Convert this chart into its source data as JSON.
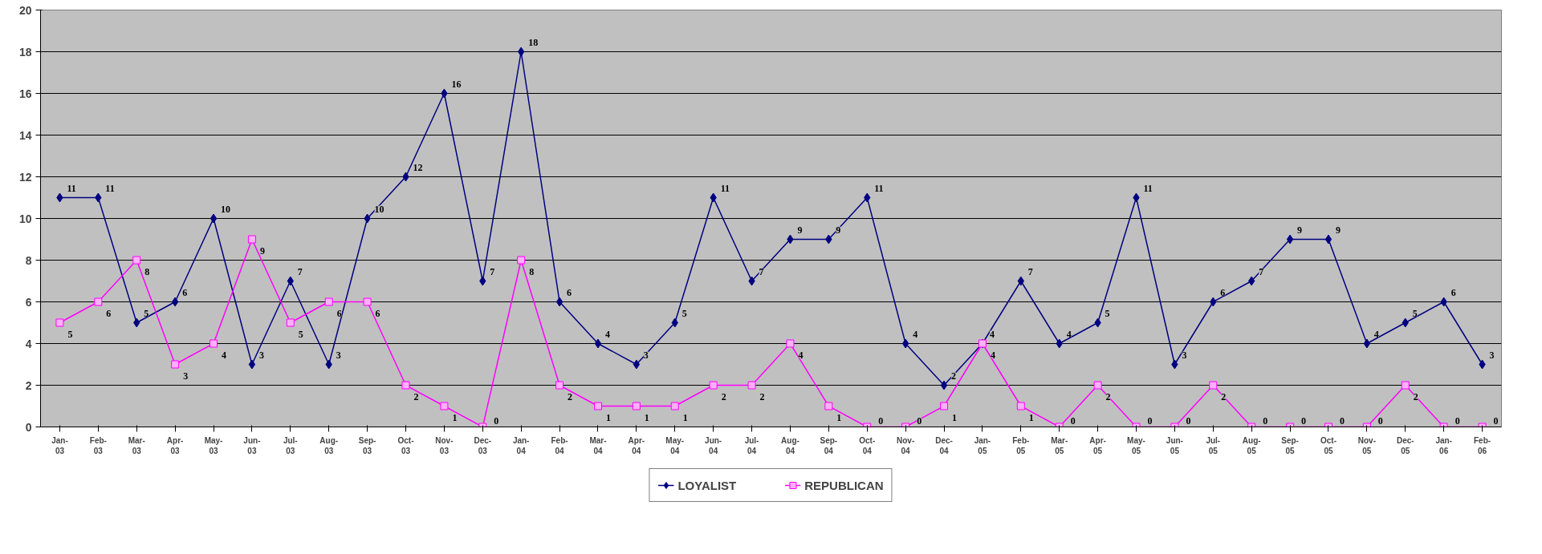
{
  "chart_data": {
    "type": "line",
    "categories": [
      "Jan-03",
      "Feb-03",
      "Mar-03",
      "Apr-03",
      "May-03",
      "Jun-03",
      "Jul-03",
      "Aug-03",
      "Sep-03",
      "Oct-03",
      "Nov-03",
      "Dec-03",
      "Jan-04",
      "Feb-04",
      "Mar-04",
      "Apr-04",
      "May-04",
      "Jun-04",
      "Jul-04",
      "Aug-04",
      "Sep-04",
      "Oct-04",
      "Nov-04",
      "Dec-04",
      "Jan-05",
      "Feb-05",
      "Mar-05",
      "Apr-05",
      "May-05",
      "Jun-05",
      "Jul-05",
      "Aug-05",
      "Sep-05",
      "Oct-05",
      "Nov-05",
      "Dec-05",
      "Jan-06",
      "Feb-06"
    ],
    "series": [
      {
        "name": "LOYALIST",
        "color": "#000080",
        "marker": "diamond",
        "values": [
          11,
          11,
          5,
          6,
          10,
          3,
          7,
          3,
          10,
          12,
          16,
          7,
          18,
          6,
          4,
          3,
          5,
          11,
          7,
          9,
          9,
          11,
          4,
          2,
          4,
          7,
          4,
          5,
          11,
          3,
          6,
          7,
          9,
          9,
          4,
          5,
          6,
          3
        ]
      },
      {
        "name": "REPUBLICAN",
        "color": "#ff00ff",
        "marker": "square",
        "values": [
          5,
          6,
          8,
          3,
          4,
          9,
          5,
          6,
          6,
          2,
          1,
          0,
          8,
          2,
          1,
          1,
          1,
          2,
          2,
          4,
          1,
          0,
          0,
          1,
          4,
          1,
          0,
          2,
          0,
          0,
          2,
          0,
          0,
          0,
          0,
          2,
          0,
          0
        ]
      }
    ],
    "ylim": [
      0,
      20
    ],
    "yticks": [
      0,
      2,
      4,
      6,
      8,
      10,
      12,
      14,
      16,
      18,
      20
    ],
    "grid": "y",
    "legend": "bottom",
    "data_labels": true,
    "line_style": "solid"
  }
}
